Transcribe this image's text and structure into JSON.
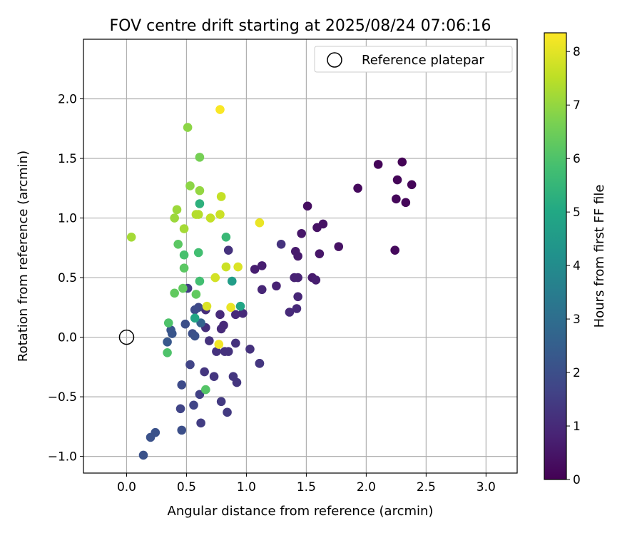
{
  "chart_data": {
    "type": "scatter",
    "title": "FOV centre drift starting at 2025/08/24 07:06:16",
    "xlabel": "Angular distance from reference (arcmin)",
    "ylabel": "Rotation from reference (arcmin)",
    "xlim": [
      -0.36,
      3.26
    ],
    "ylim": [
      -1.14,
      2.5
    ],
    "xticks": [
      0.0,
      0.5,
      1.0,
      1.5,
      2.0,
      2.5,
      3.0
    ],
    "xtick_labels": [
      "0.0",
      "0.5",
      "1.0",
      "1.5",
      "2.0",
      "2.5",
      "3.0"
    ],
    "yticks": [
      -1.0,
      -0.5,
      0.0,
      0.5,
      1.0,
      1.5,
      2.0
    ],
    "ytick_labels": [
      "−1.0",
      "−0.5",
      "0.0",
      "0.5",
      "1.0",
      "1.5",
      "2.0"
    ],
    "grid": true,
    "legend": {
      "placement": "top-right",
      "label": "Reference platepar"
    },
    "reference_point": {
      "x": 0.0,
      "y": 0.0
    },
    "colorbar": {
      "label": "Hours from first FF file",
      "colormap": "viridis",
      "range": [
        0,
        8.35
      ],
      "ticks": [
        0,
        1,
        2,
        3,
        4,
        5,
        6,
        7,
        8
      ],
      "tick_labels": [
        "0",
        "1",
        "2",
        "3",
        "4",
        "5",
        "6",
        "7",
        "8"
      ]
    },
    "points": [
      {
        "x": 2.3,
        "y": 1.47,
        "c": 0.05
      },
      {
        "x": 2.1,
        "y": 1.45,
        "c": 0.1
      },
      {
        "x": 2.26,
        "y": 1.32,
        "c": 0.1
      },
      {
        "x": 2.38,
        "y": 1.28,
        "c": 0.1
      },
      {
        "x": 2.25,
        "y": 1.16,
        "c": 0.15
      },
      {
        "x": 2.33,
        "y": 1.13,
        "c": 0.15
      },
      {
        "x": 1.93,
        "y": 1.25,
        "c": 0.2
      },
      {
        "x": 2.24,
        "y": 0.73,
        "c": 0.2
      },
      {
        "x": 1.51,
        "y": 1.1,
        "c": 0.3
      },
      {
        "x": 1.64,
        "y": 0.95,
        "c": 0.4
      },
      {
        "x": 1.59,
        "y": 0.92,
        "c": 0.4
      },
      {
        "x": 1.46,
        "y": 0.87,
        "c": 0.5
      },
      {
        "x": 1.77,
        "y": 0.76,
        "c": 0.4
      },
      {
        "x": 1.61,
        "y": 0.7,
        "c": 0.5
      },
      {
        "x": 1.41,
        "y": 0.72,
        "c": 0.6
      },
      {
        "x": 1.43,
        "y": 0.68,
        "c": 0.6
      },
      {
        "x": 1.29,
        "y": 0.78,
        "c": 1.2
      },
      {
        "x": 1.13,
        "y": 0.6,
        "c": 0.7
      },
      {
        "x": 1.07,
        "y": 0.57,
        "c": 0.7
      },
      {
        "x": 1.4,
        "y": 0.5,
        "c": 0.8
      },
      {
        "x": 1.43,
        "y": 0.5,
        "c": 0.8
      },
      {
        "x": 1.55,
        "y": 0.5,
        "c": 0.6
      },
      {
        "x": 1.58,
        "y": 0.48,
        "c": 0.7
      },
      {
        "x": 1.25,
        "y": 0.43,
        "c": 0.8
      },
      {
        "x": 1.13,
        "y": 0.4,
        "c": 0.9
      },
      {
        "x": 1.43,
        "y": 0.34,
        "c": 0.9
      },
      {
        "x": 1.42,
        "y": 0.24,
        "c": 1.0
      },
      {
        "x": 1.36,
        "y": 0.21,
        "c": 1.0
      },
      {
        "x": 0.85,
        "y": 0.73,
        "c": 1.2
      },
      {
        "x": 0.97,
        "y": 0.2,
        "c": 1.0
      },
      {
        "x": 0.91,
        "y": 0.19,
        "c": 1.0
      },
      {
        "x": 0.78,
        "y": 0.19,
        "c": 1.0
      },
      {
        "x": 0.81,
        "y": 0.1,
        "c": 1.0
      },
      {
        "x": 0.79,
        "y": 0.07,
        "c": 1.0
      },
      {
        "x": 0.66,
        "y": 0.23,
        "c": 1.1
      },
      {
        "x": 0.66,
        "y": 0.08,
        "c": 1.1
      },
      {
        "x": 0.69,
        "y": -0.03,
        "c": 1.2
      },
      {
        "x": 0.75,
        "y": -0.12,
        "c": 1.2
      },
      {
        "x": 0.85,
        "y": -0.12,
        "c": 1.2
      },
      {
        "x": 0.82,
        "y": -0.12,
        "c": 1.2
      },
      {
        "x": 0.91,
        "y": -0.05,
        "c": 1.2
      },
      {
        "x": 1.03,
        "y": -0.1,
        "c": 1.2
      },
      {
        "x": 1.11,
        "y": -0.22,
        "c": 1.3
      },
      {
        "x": 1.11,
        "y": -0.22,
        "c": 1.3
      },
      {
        "x": 0.65,
        "y": -0.29,
        "c": 1.3
      },
      {
        "x": 0.73,
        "y": -0.33,
        "c": 1.3
      },
      {
        "x": 0.89,
        "y": -0.33,
        "c": 1.3
      },
      {
        "x": 0.92,
        "y": -0.38,
        "c": 1.3
      },
      {
        "x": 0.79,
        "y": -0.54,
        "c": 1.4
      },
      {
        "x": 0.84,
        "y": -0.63,
        "c": 1.4
      },
      {
        "x": 0.62,
        "y": -0.72,
        "c": 1.5
      },
      {
        "x": 0.61,
        "y": -0.48,
        "c": 1.6
      },
      {
        "x": 0.56,
        "y": -0.57,
        "c": 1.7
      },
      {
        "x": 0.45,
        "y": -0.6,
        "c": 1.7
      },
      {
        "x": 0.53,
        "y": -0.23,
        "c": 1.7
      },
      {
        "x": 0.46,
        "y": -0.4,
        "c": 1.9
      },
      {
        "x": 0.46,
        "y": -0.78,
        "c": 2.0
      },
      {
        "x": 0.24,
        "y": -0.8,
        "c": 2.1
      },
      {
        "x": 0.2,
        "y": -0.84,
        "c": 2.1
      },
      {
        "x": 0.14,
        "y": -0.99,
        "c": 2.1
      },
      {
        "x": 0.51,
        "y": 0.41,
        "c": 1.5
      },
      {
        "x": 0.57,
        "y": 0.23,
        "c": 1.9
      },
      {
        "x": 0.6,
        "y": 0.25,
        "c": 1.8
      },
      {
        "x": 0.49,
        "y": 0.11,
        "c": 2.0
      },
      {
        "x": 0.55,
        "y": 0.03,
        "c": 2.0
      },
      {
        "x": 0.57,
        "y": 0.01,
        "c": 2.1
      },
      {
        "x": 0.37,
        "y": 0.06,
        "c": 2.2
      },
      {
        "x": 0.38,
        "y": 0.03,
        "c": 2.2
      },
      {
        "x": 0.34,
        "y": -0.04,
        "c": 2.3
      },
      {
        "x": 0.62,
        "y": 0.12,
        "c": 2.6
      },
      {
        "x": 0.57,
        "y": 0.16,
        "c": 4.9
      },
      {
        "x": 0.88,
        "y": 0.47,
        "c": 4.6
      },
      {
        "x": 0.95,
        "y": 0.26,
        "c": 4.9
      },
      {
        "x": 0.61,
        "y": 1.12,
        "c": 5.3
      },
      {
        "x": 0.83,
        "y": 0.84,
        "c": 5.6
      },
      {
        "x": 0.6,
        "y": 0.71,
        "c": 5.8
      },
      {
        "x": 0.61,
        "y": 0.47,
        "c": 5.8
      },
      {
        "x": 0.48,
        "y": 0.69,
        "c": 5.9
      },
      {
        "x": 0.35,
        "y": 0.12,
        "c": 6.0
      },
      {
        "x": 0.34,
        "y": -0.13,
        "c": 6.0
      },
      {
        "x": 0.66,
        "y": -0.44,
        "c": 6.1
      },
      {
        "x": 0.48,
        "y": 0.58,
        "c": 6.2
      },
      {
        "x": 0.43,
        "y": 0.78,
        "c": 6.2
      },
      {
        "x": 0.4,
        "y": 0.37,
        "c": 6.3
      },
      {
        "x": 0.47,
        "y": 0.41,
        "c": 6.3
      },
      {
        "x": 0.58,
        "y": 0.36,
        "c": 6.3
      },
      {
        "x": 0.61,
        "y": 1.51,
        "c": 6.6
      },
      {
        "x": 0.51,
        "y": 1.76,
        "c": 6.9
      },
      {
        "x": 0.53,
        "y": 1.27,
        "c": 6.9
      },
      {
        "x": 0.61,
        "y": 1.23,
        "c": 7.0
      },
      {
        "x": 0.42,
        "y": 1.07,
        "c": 7.1
      },
      {
        "x": 0.4,
        "y": 1.0,
        "c": 7.1
      },
      {
        "x": 0.48,
        "y": 0.91,
        "c": 7.2
      },
      {
        "x": 0.04,
        "y": 0.84,
        "c": 7.2
      },
      {
        "x": 0.58,
        "y": 1.03,
        "c": 7.4
      },
      {
        "x": 0.6,
        "y": 1.03,
        "c": 7.4
      },
      {
        "x": 0.79,
        "y": 1.18,
        "c": 7.6
      },
      {
        "x": 0.7,
        "y": 1.0,
        "c": 7.6
      },
      {
        "x": 0.78,
        "y": 1.03,
        "c": 7.7
      },
      {
        "x": 0.83,
        "y": 0.59,
        "c": 7.7
      },
      {
        "x": 0.74,
        "y": 0.5,
        "c": 7.8
      },
      {
        "x": 0.93,
        "y": 0.59,
        "c": 7.9
      },
      {
        "x": 0.67,
        "y": 0.26,
        "c": 7.9
      },
      {
        "x": 1.11,
        "y": 0.96,
        "c": 8.1
      },
      {
        "x": 0.87,
        "y": 0.25,
        "c": 8.1
      },
      {
        "x": 0.77,
        "y": -0.06,
        "c": 8.2
      },
      {
        "x": 0.78,
        "y": 1.91,
        "c": 8.3
      }
    ]
  }
}
